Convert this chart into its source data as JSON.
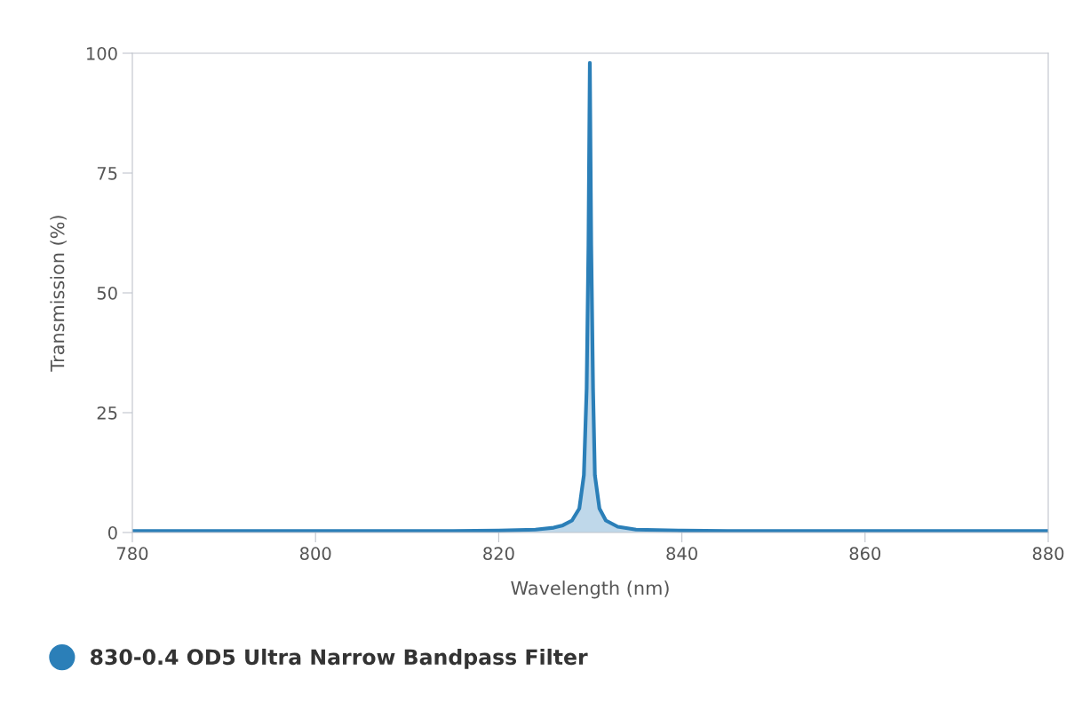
{
  "chart_data": {
    "type": "area",
    "xlabel": "Wavelength (nm)",
    "ylabel": "Transmission (%)",
    "xlim": [
      780,
      880
    ],
    "xticks": [
      780,
      800,
      820,
      840,
      860,
      880
    ],
    "ylim": [
      0,
      100
    ],
    "yticks": [
      0,
      25,
      50,
      75,
      100
    ],
    "grid": false,
    "legend": "bottom left",
    "series": [
      {
        "name": "830-0.4 OD5 Ultra Narrow Bandpass Filter",
        "color": "#2b7fb8",
        "x": [
          780,
          800,
          815,
          820,
          824,
          826,
          827,
          828,
          828.8,
          829.3,
          829.6,
          829.8,
          829.95,
          830.1,
          830.3,
          830.5,
          831,
          831.7,
          833,
          835,
          840,
          845,
          860,
          880
        ],
        "values": [
          0.3,
          0.3,
          0.3,
          0.4,
          0.6,
          1.0,
          1.5,
          2.5,
          5,
          12,
          30,
          60,
          98,
          60,
          30,
          12,
          5,
          2.5,
          1.2,
          0.6,
          0.4,
          0.3,
          0.3,
          0.3
        ]
      }
    ]
  }
}
